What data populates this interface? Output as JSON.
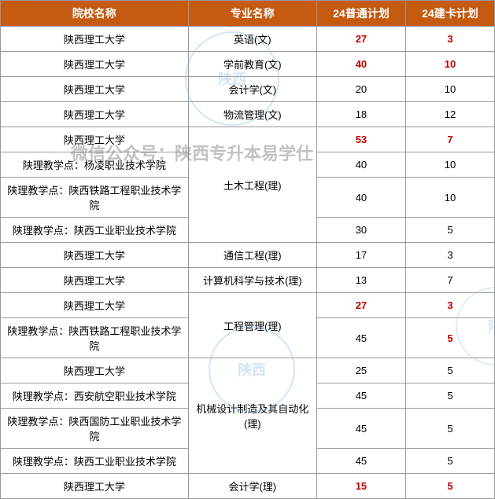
{
  "headers": [
    "院校名称",
    "专业名称",
    "24普通计划",
    "24建卡计划"
  ],
  "header_bg": "#c55a11",
  "header_color": "#ffffff",
  "highlight_color": "#c00000",
  "rows": [
    {
      "school": "陕西理工大学",
      "major": "英语(文)",
      "plan1": "27",
      "plan2": "3",
      "plan1_red": true,
      "plan2_red": true,
      "rowspan_major": 1
    },
    {
      "school": "陕西理工大学",
      "major": "学前教育(文)",
      "plan1": "40",
      "plan2": "10",
      "plan1_red": true,
      "plan2_red": true,
      "rowspan_major": 1
    },
    {
      "school": "陕西理工大学",
      "major": "会计学(文)",
      "plan1": "20",
      "plan2": "10",
      "plan1_red": false,
      "plan2_red": false,
      "rowspan_major": 1
    },
    {
      "school": "陕西理工大学",
      "major": "物流管理(文)",
      "plan1": "18",
      "plan2": "12",
      "plan1_red": false,
      "plan2_red": false,
      "rowspan_major": 1
    },
    {
      "school": "陕西理工大学",
      "major": "土木工程(理)",
      "plan1": "53",
      "plan2": "7",
      "plan1_red": true,
      "plan2_red": true,
      "rowspan_major": 4
    },
    {
      "school": "陕理教学点：杨凌职业技术学院",
      "major": "",
      "plan1": "40",
      "plan2": "10",
      "plan1_red": false,
      "plan2_red": false,
      "rowspan_major": 0
    },
    {
      "school": "陕理教学点：陕西铁路工程职业技术学院",
      "major": "",
      "plan1": "40",
      "plan2": "10",
      "plan1_red": false,
      "plan2_red": false,
      "rowspan_major": 0
    },
    {
      "school": "陕理教学点：陕西工业职业技术学院",
      "major": "",
      "plan1": "30",
      "plan2": "5",
      "plan1_red": false,
      "plan2_red": false,
      "rowspan_major": 0
    },
    {
      "school": "陕西理工大学",
      "major": "通信工程(理)",
      "plan1": "17",
      "plan2": "3",
      "plan1_red": false,
      "plan2_red": false,
      "rowspan_major": 1
    },
    {
      "school": "陕西理工大学",
      "major": "计算机科学与技术(理)",
      "plan1": "13",
      "plan2": "7",
      "plan1_red": false,
      "plan2_red": false,
      "rowspan_major": 1
    },
    {
      "school": "陕西理工大学",
      "major": "工程管理(理)",
      "plan1": "27",
      "plan2": "3",
      "plan1_red": true,
      "plan2_red": true,
      "rowspan_major": 2
    },
    {
      "school": "陕理教学点：陕西铁路工程职业技术学院",
      "major": "",
      "plan1": "45",
      "plan2": "5",
      "plan1_red": false,
      "plan2_red": true,
      "rowspan_major": 0
    },
    {
      "school": "陕西理工大学",
      "major": "机械设计制造及其自动化(理)",
      "plan1": "25",
      "plan2": "5",
      "plan1_red": false,
      "plan2_red": false,
      "rowspan_major": 4
    },
    {
      "school": "陕理教学点：西安航空职业技术学院",
      "major": "",
      "plan1": "45",
      "plan2": "5",
      "plan1_red": false,
      "plan2_red": false,
      "rowspan_major": 0
    },
    {
      "school": "陕理教学点：陕西国防工业职业技术学院",
      "major": "",
      "plan1": "45",
      "plan2": "5",
      "plan1_red": false,
      "plan2_red": false,
      "rowspan_major": 0
    },
    {
      "school": "陕理教学点：陕西工业职业技术学院",
      "major": "",
      "plan1": "45",
      "plan2": "5",
      "plan1_red": false,
      "plan2_red": false,
      "rowspan_major": 0
    },
    {
      "school": "陕西理工大学",
      "major": "会计学(理)",
      "plan1": "15",
      "plan2": "5",
      "plan1_red": true,
      "plan2_red": true,
      "rowspan_major": 1
    }
  ],
  "watermark_text": "微信公众号：陕西专升本易学仕",
  "stamp_text1": "陕西专升本易学仕",
  "stamp_center1": "陕西",
  "stamp_text2": "陕西专升本易学仕",
  "stamp_center2": "陕西",
  "stamp_side": "陕"
}
